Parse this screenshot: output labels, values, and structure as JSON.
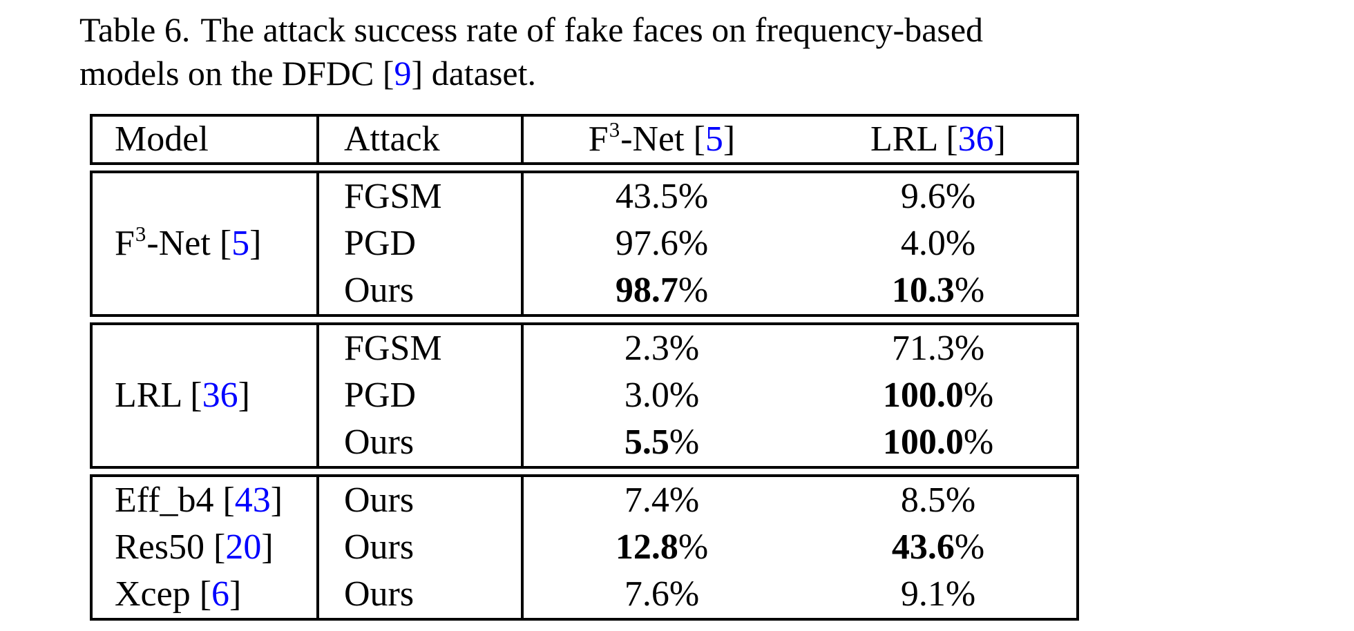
{
  "caption": {
    "label": "Table 6.",
    "line1_rest": "The attack success rate of fake faces on frequency-based",
    "line2_pre": "models on the DFDC [",
    "line2_cite": "9",
    "line2_post": "] dataset."
  },
  "colors": {
    "citation_blue": "#0000ff",
    "text_black": "#000000",
    "background": "#ffffff"
  },
  "table": {
    "pct": "%",
    "headers": {
      "model": "Model",
      "attack": "Attack",
      "f3net": {
        "pre": "F",
        "sup": "3",
        "mid": "-Net [",
        "cite": "5",
        "post": "]"
      },
      "lrl": {
        "pre": "LRL [",
        "cite": "36",
        "post": "]"
      }
    },
    "blocks": [
      {
        "model": {
          "pre": "F",
          "sup": "3",
          "mid": "-Net [",
          "cite": "5",
          "post": "]"
        },
        "rows": [
          {
            "attack": "FGSM",
            "f3net": {
              "v": "43.5"
            },
            "lrl": {
              "v": "9.6"
            }
          },
          {
            "attack": "PGD",
            "f3net": {
              "v": "97.6"
            },
            "lrl": {
              "v": "4.0"
            }
          },
          {
            "attack": "Ours",
            "f3net": {
              "v": "98.7",
              "b": true
            },
            "lrl": {
              "v": "10.3",
              "b": true
            }
          }
        ]
      },
      {
        "model": {
          "pre": "LRL [",
          "cite": "36",
          "post": "]"
        },
        "rows": [
          {
            "attack": "FGSM",
            "f3net": {
              "v": "2.3"
            },
            "lrl": {
              "v": "71.3"
            }
          },
          {
            "attack": "PGD",
            "f3net": {
              "v": "3.0"
            },
            "lrl": {
              "v": "100.0",
              "b": true
            }
          },
          {
            "attack": "Ours",
            "f3net": {
              "v": "5.5",
              "b": true
            },
            "lrl": {
              "v": "100.0",
              "b": true
            }
          }
        ]
      },
      {
        "rows": [
          {
            "model": {
              "pre": "Eff_b4 [",
              "cite": "43",
              "post": "]"
            },
            "attack": "Ours",
            "f3net": {
              "v": "7.4"
            },
            "lrl": {
              "v": "8.5"
            }
          },
          {
            "model": {
              "pre": "Res50 [",
              "cite": "20",
              "post": "]"
            },
            "attack": "Ours",
            "f3net": {
              "v": "12.8",
              "b": true
            },
            "lrl": {
              "v": "43.6",
              "b": true
            }
          },
          {
            "model": {
              "pre": "Xcep [",
              "cite": "6",
              "post": "]"
            },
            "attack": "Ours",
            "f3net": {
              "v": "7.6"
            },
            "lrl": {
              "v": "9.1"
            }
          }
        ]
      }
    ]
  }
}
